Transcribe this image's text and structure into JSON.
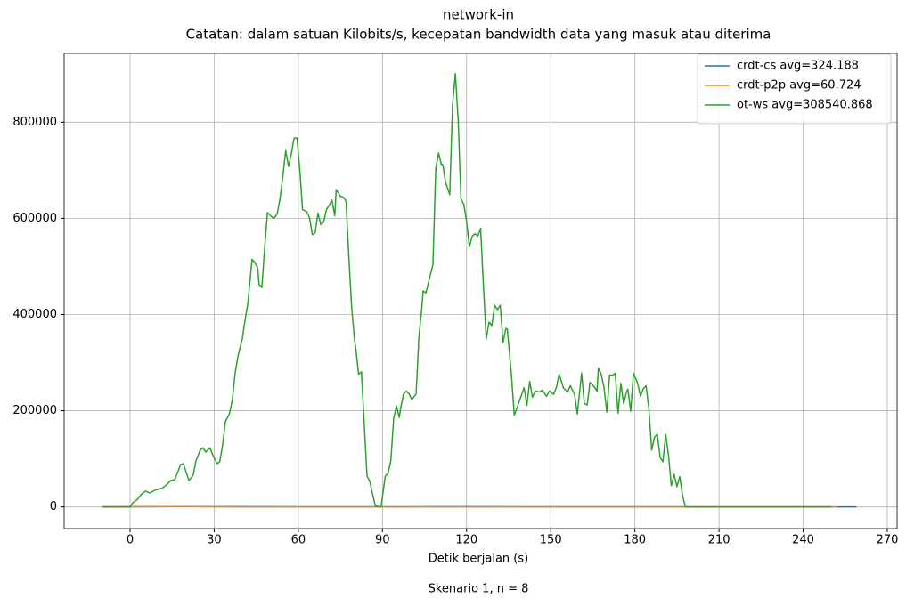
{
  "chart_data": {
    "type": "line",
    "title": "network-in",
    "subtitle": "Catatan: dalam satuan Kilobits/s, kecepatan bandwidth data yang masuk atau diterima",
    "x_label": "Detik berjalan (s)",
    "footnote": "Skenario 1, n = 8",
    "xlim": [
      -23.5,
      273.5
    ],
    "ylim": [
      -45000,
      943000
    ],
    "xticks": [
      0,
      30,
      60,
      90,
      120,
      150,
      180,
      210,
      240,
      270
    ],
    "yticks": [
      0,
      200000,
      400000,
      600000,
      800000
    ],
    "grid": true,
    "legend": "upper-right",
    "series": [
      {
        "name": "crdt-cs avg=324.188",
        "color": "#1f77b4",
        "x": [
          -10,
          0,
          10,
          20,
          40,
          60,
          80,
          100,
          120,
          140,
          160,
          180,
          200,
          220,
          240,
          259
        ],
        "values": [
          0,
          300,
          600,
          700,
          500,
          400,
          300,
          300,
          500,
          300,
          300,
          300,
          200,
          200,
          200,
          100
        ]
      },
      {
        "name": "crdt-p2p avg=60.724",
        "color": "#ff7f0e",
        "x": [
          -10,
          0,
          10,
          20,
          40,
          60,
          80,
          100,
          120,
          140,
          160,
          180,
          200,
          220,
          240,
          252
        ],
        "values": [
          0,
          600,
          900,
          700,
          200,
          100,
          50,
          50,
          50,
          50,
          50,
          50,
          20,
          20,
          20,
          0
        ]
      },
      {
        "name": "ot-ws avg=308540.868",
        "color": "#2ca02c",
        "x": [
          -10,
          0,
          1,
          2.5,
          4,
          5.5,
          7,
          9,
          11.5,
          13,
          14.5,
          16,
          18,
          19,
          21,
          22.5,
          23.5,
          25,
          26,
          27,
          28.5,
          29.5,
          31,
          32,
          33,
          34,
          35.5,
          36.5,
          37.5,
          38.5,
          40,
          41,
          42,
          43.5,
          44.5,
          45.5,
          46,
          47,
          48,
          49,
          50.5,
          51.5,
          52.5,
          53.5,
          54.5,
          55.5,
          56.5,
          57.5,
          58.5,
          59.5,
          60.5,
          61.5,
          63,
          64,
          65,
          66,
          67,
          68,
          69,
          70,
          71,
          72,
          73,
          73.5,
          75,
          76,
          77,
          78,
          79,
          80,
          80.5,
          81.5,
          82.5,
          83.5,
          84.5,
          85.5,
          86.5,
          87.5,
          89.5,
          91,
          92,
          93,
          94,
          95,
          96,
          96.5,
          97.5,
          98.5,
          99.5,
          100.5,
          102,
          103,
          104,
          104.5,
          105.5,
          106.5,
          108,
          109,
          110,
          111,
          111.5,
          112.5,
          114,
          115,
          116,
          117,
          118,
          119,
          120,
          121,
          122,
          123,
          124,
          125,
          126,
          127,
          128,
          129,
          130,
          131,
          132,
          133,
          134,
          134.5,
          136,
          137,
          138,
          139,
          140.5,
          141.5,
          142.5,
          143.5,
          144.5,
          146,
          147,
          148.5,
          149.5,
          151,
          152,
          153,
          154.5,
          156,
          157,
          158.5,
          159.5,
          160,
          161,
          162,
          163,
          164,
          165.5,
          166.5,
          167,
          168,
          169,
          170,
          171,
          172,
          173,
          174,
          175,
          176,
          177,
          177.5,
          178.5,
          179.5,
          181,
          182,
          183,
          184,
          185,
          186,
          187,
          188,
          189,
          190,
          191,
          192,
          193,
          194,
          195,
          196,
          197,
          198,
          250
        ],
        "values": [
          0,
          0,
          9000,
          15000,
          26000,
          33000,
          29000,
          35000,
          39000,
          46000,
          55000,
          57000,
          88000,
          90000,
          55000,
          66000,
          96000,
          118000,
          123000,
          114000,
          123000,
          108000,
          90000,
          94000,
          129000,
          177000,
          195000,
          224000,
          280000,
          314000,
          349000,
          388000,
          423000,
          515000,
          508000,
          497000,
          463000,
          456000,
          539000,
          612000,
          603000,
          601000,
          610000,
          642000,
          688000,
          741000,
          708000,
          734000,
          767000,
          767000,
          704000,
          618000,
          614000,
          601000,
          566000,
          570000,
          611000,
          587000,
          592000,
          618000,
          627000,
          638000,
          605000,
          660000,
          646000,
          644000,
          636000,
          522000,
          417000,
          349000,
          329000,
          276000,
          281000,
          173000,
          64000,
          53000,
          26000,
          2000,
          0,
          64000,
          70000,
          97000,
          184000,
          210000,
          186000,
          206000,
          234000,
          241000,
          235000,
          223000,
          235000,
          353000,
          412000,
          449000,
          445000,
          469000,
          504000,
          703000,
          736000,
          712000,
          712000,
          675000,
          649000,
          837000,
          901000,
          804000,
          640000,
          629000,
          594000,
          541000,
          563000,
          568000,
          563000,
          579000,
          460000,
          349000,
          384000,
          377000,
          419000,
          410000,
          419000,
          342000,
          371000,
          370000,
          274000,
          191000,
          206000,
          223000,
          248000,
          211000,
          261000,
          228000,
          241000,
          239000,
          243000,
          230000,
          241000,
          234000,
          248000,
          276000,
          248000,
          239000,
          252000,
          234000,
          193000,
          223000,
          278000,
          215000,
          212000,
          259000,
          250000,
          241000,
          289000,
          276000,
          248000,
          197000,
          274000,
          274000,
          278000,
          195000,
          257000,
          215000,
          239000,
          245000,
          199000,
          278000,
          257000,
          230000,
          246000,
          252000,
          204000,
          118000,
          145000,
          151000,
          103000,
          94000,
          151000,
          107000,
          44000,
          68000,
          42000,
          63000,
          24000,
          0,
          0
        ]
      }
    ]
  }
}
